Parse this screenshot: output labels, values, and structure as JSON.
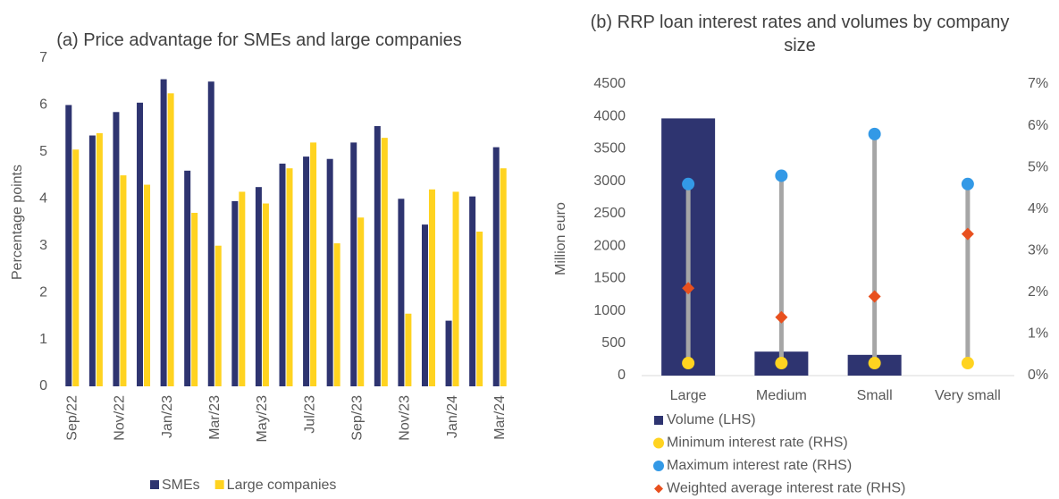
{
  "chart_data": [
    {
      "type": "bar",
      "title": "(a) Price advantage for SMEs and large companies",
      "y_label": "Percentage points",
      "categories": [
        "Sep/22",
        null,
        "Nov/22",
        null,
        "Jan/23",
        null,
        "Mar/23",
        null,
        "May/23",
        null,
        "Jul/23",
        null,
        "Sep/23",
        null,
        "Nov/23",
        null,
        "Jan/24",
        null,
        "Mar/24"
      ],
      "series": [
        {
          "name": "SMEs",
          "color": "#2e3470",
          "values": [
            6.0,
            5.35,
            5.85,
            6.05,
            6.55,
            4.6,
            6.5,
            3.95,
            4.25,
            4.75,
            4.9,
            4.85,
            5.2,
            5.55,
            4.0,
            3.45,
            1.4,
            4.05,
            5.1
          ]
        },
        {
          "name": "Large companies",
          "color": "#ffd320",
          "values": [
            5.05,
            5.4,
            4.5,
            4.3,
            6.25,
            3.7,
            3.0,
            4.15,
            3.9,
            4.65,
            5.2,
            3.05,
            3.6,
            5.3,
            1.55,
            4.2,
            4.15,
            3.3,
            4.65
          ]
        }
      ],
      "ylim": [
        0,
        7
      ],
      "yticks": [
        0,
        1,
        2,
        3,
        4,
        5,
        6,
        7
      ],
      "legend": "bottom"
    },
    {
      "type": "combo",
      "title": "(b) RRP loan interest rates and volumes by company size",
      "y_label": "Million euro",
      "categories": [
        "Large",
        "Medium",
        "Small",
        "Very small"
      ],
      "series": [
        {
          "name": "Volume (LHS)",
          "mark": "bar",
          "color": "#2e3470",
          "values": [
            3970,
            370,
            320,
            0
          ]
        },
        {
          "name": "Minimum interest rate (RHS)",
          "mark": "circle",
          "axis": "y2",
          "color": "#ffd320",
          "values": [
            0.3,
            0.3,
            0.3,
            0.3
          ]
        },
        {
          "name": "Maximum interest rate (RHS)",
          "mark": "circle",
          "axis": "y2",
          "color": "#3399e6",
          "values": [
            4.6,
            4.8,
            5.8,
            4.6
          ]
        },
        {
          "name": "Weighted average interest rate (RHS)",
          "mark": "diamond",
          "axis": "y2",
          "color": "#e8501e",
          "values": [
            2.1,
            1.4,
            1.9,
            3.4
          ]
        }
      ],
      "ylim": [
        0,
        4500
      ],
      "yticks": [
        0,
        500,
        1000,
        1500,
        2000,
        2500,
        3000,
        3500,
        4000,
        4500
      ],
      "y2lim": [
        0,
        7
      ],
      "y2ticks": [
        {
          "value": 0,
          "label": "0%"
        },
        {
          "value": 1,
          "label": "1%"
        },
        {
          "value": 2,
          "label": "2%"
        },
        {
          "value": 3,
          "label": "3%"
        },
        {
          "value": 4,
          "label": "4%"
        },
        {
          "value": 5,
          "label": "5%"
        },
        {
          "value": 6,
          "label": "6%"
        },
        {
          "value": 7,
          "label": "7%"
        }
      ],
      "legend": "bottom"
    }
  ]
}
